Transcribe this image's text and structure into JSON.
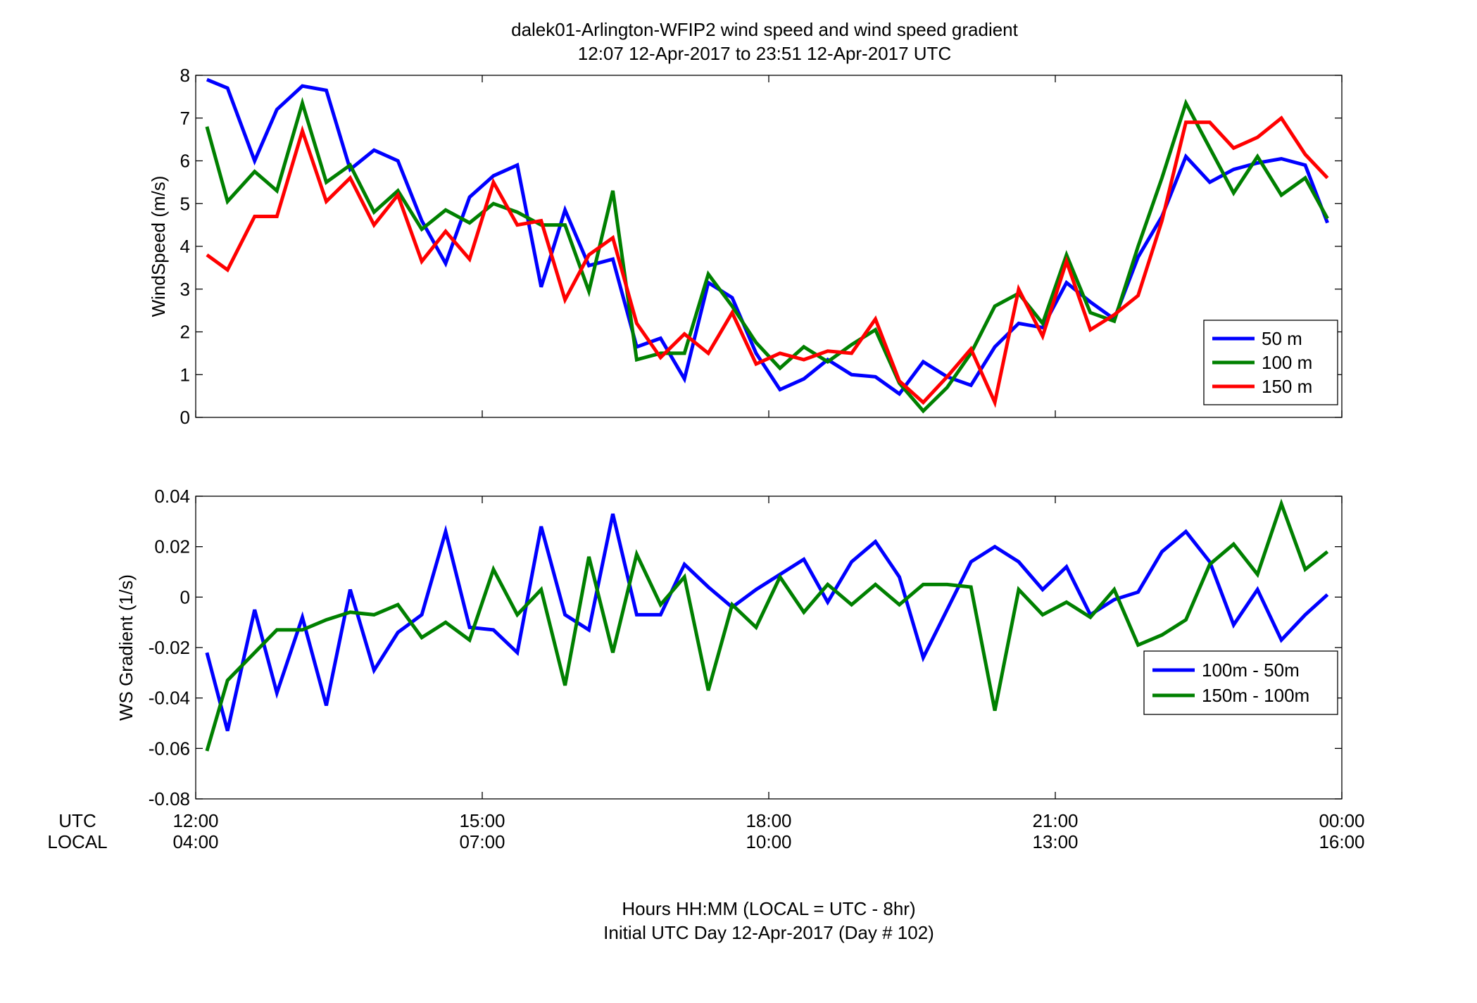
{
  "figure": {
    "title_line1": "dalek01-Arlington-WFIP2  wind speed and wind speed gradient",
    "title_line2": "12:07 12-Apr-2017 to 23:51 12-Apr-2017  UTC",
    "row_label_utc": "UTC",
    "row_label_local": "LOCAL",
    "xlabel_line1": "Hours HH:MM  (LOCAL = UTC - 8hr)",
    "xlabel_line2": "Initial UTC Day 12-Apr-2017 (Day # 102)",
    "utc_ticks": [
      "12:00",
      "15:00",
      "18:00",
      "21:00",
      "00:00"
    ],
    "local_ticks": [
      "04:00",
      "07:00",
      "10:00",
      "13:00",
      "16:00"
    ],
    "x_tick_hours": [
      0,
      3,
      6,
      9,
      12
    ],
    "xlim_hours": [
      0,
      12
    ],
    "x_note": "x values are hours elapsed since 12:00 UTC 12-Apr-2017"
  },
  "chart_data": [
    {
      "type": "line",
      "ylabel": "WindSpeed (m/s)",
      "ylim": [
        0,
        8
      ],
      "yticks": [
        0,
        1,
        2,
        3,
        4,
        5,
        6,
        7,
        8
      ],
      "grid": false,
      "legend_position": "bottom-right",
      "x": [
        0.117,
        0.333,
        0.617,
        0.85,
        1.117,
        1.367,
        1.617,
        1.867,
        2.117,
        2.367,
        2.617,
        2.867,
        3.117,
        3.367,
        3.617,
        3.867,
        4.117,
        4.367,
        4.617,
        4.867,
        5.117,
        5.367,
        5.617,
        5.867,
        6.117,
        6.367,
        6.617,
        6.867,
        7.117,
        7.367,
        7.617,
        7.867,
        8.117,
        8.367,
        8.617,
        8.867,
        9.117,
        9.367,
        9.617,
        9.867,
        10.117,
        10.367,
        10.617,
        10.867,
        11.117,
        11.367,
        11.617,
        11.85
      ],
      "series": [
        {
          "name": "50 m",
          "color": "#0000ff",
          "values": [
            7.9,
            7.7,
            6.0,
            7.2,
            7.75,
            7.65,
            5.8,
            6.25,
            6.0,
            4.6,
            3.6,
            5.15,
            5.65,
            5.9,
            3.05,
            4.85,
            3.55,
            3.7,
            1.65,
            1.85,
            0.9,
            3.15,
            2.8,
            1.5,
            0.65,
            0.9,
            1.35,
            1.0,
            0.95,
            0.55,
            1.3,
            0.95,
            0.75,
            1.65,
            2.2,
            2.1,
            3.15,
            2.7,
            2.3,
            3.75,
            4.7,
            6.1,
            5.5,
            5.8,
            5.95,
            6.05,
            5.9,
            4.55
          ]
        },
        {
          "name": "100 m",
          "color": "#008000",
          "values": [
            6.8,
            5.05,
            5.75,
            5.3,
            7.35,
            5.5,
            5.9,
            4.8,
            5.3,
            4.4,
            4.85,
            4.55,
            5.0,
            4.8,
            4.5,
            4.5,
            2.95,
            5.3,
            1.35,
            1.5,
            1.5,
            3.35,
            2.6,
            1.75,
            1.15,
            1.65,
            1.3,
            1.7,
            2.05,
            0.8,
            0.15,
            0.7,
            1.5,
            2.6,
            2.9,
            2.2,
            3.8,
            2.45,
            2.25,
            4.0,
            5.6,
            7.35,
            6.3,
            5.25,
            6.1,
            5.2,
            5.6,
            4.65
          ]
        },
        {
          "name": "150 m",
          "color": "#ff0000",
          "values": [
            3.8,
            3.45,
            4.7,
            4.7,
            6.7,
            5.05,
            5.6,
            4.5,
            5.2,
            3.65,
            4.35,
            3.7,
            5.5,
            4.5,
            4.6,
            2.75,
            3.8,
            4.2,
            2.2,
            1.4,
            1.95,
            1.5,
            2.45,
            1.25,
            1.5,
            1.35,
            1.55,
            1.5,
            2.3,
            0.85,
            0.35,
            0.95,
            1.6,
            0.35,
            3.0,
            1.9,
            3.65,
            2.05,
            2.4,
            2.85,
            4.6,
            6.9,
            6.9,
            6.3,
            6.55,
            7.0,
            6.15,
            5.6
          ]
        }
      ]
    },
    {
      "type": "line",
      "ylabel": "WS Gradient (1/s)",
      "ylim": [
        -0.08,
        0.04
      ],
      "yticks": [
        -0.08,
        -0.06,
        -0.04,
        -0.02,
        0,
        0.02,
        0.04
      ],
      "ytick_labels": [
        "-0.08",
        "-0.06",
        "-0.04",
        "-0.02",
        "0",
        "0.02",
        "0.04"
      ],
      "grid": false,
      "legend_position": "right",
      "x": [
        0.117,
        0.333,
        0.617,
        0.85,
        1.117,
        1.367,
        1.617,
        1.867,
        2.117,
        2.367,
        2.617,
        2.867,
        3.117,
        3.367,
        3.617,
        3.867,
        4.117,
        4.367,
        4.617,
        4.867,
        5.117,
        5.367,
        5.617,
        5.867,
        6.117,
        6.367,
        6.617,
        6.867,
        7.117,
        7.367,
        7.617,
        7.867,
        8.117,
        8.367,
        8.617,
        8.867,
        9.117,
        9.367,
        9.617,
        9.867,
        10.117,
        10.367,
        10.617,
        10.867,
        11.117,
        11.367,
        11.617,
        11.85
      ],
      "series": [
        {
          "name": "100m - 50m",
          "color": "#0000ff",
          "values": [
            -0.022,
            -0.053,
            -0.005,
            -0.038,
            -0.008,
            -0.043,
            0.003,
            -0.029,
            -0.014,
            -0.007,
            0.026,
            -0.012,
            -0.013,
            -0.022,
            0.028,
            -0.007,
            -0.013,
            0.033,
            -0.007,
            -0.007,
            0.013,
            0.004,
            -0.004,
            0.003,
            0.009,
            0.015,
            -0.002,
            0.014,
            0.022,
            0.008,
            -0.024,
            -0.005,
            0.014,
            0.02,
            0.014,
            0.003,
            0.012,
            -0.007,
            -0.001,
            0.002,
            0.018,
            0.026,
            0.014,
            -0.011,
            0.003,
            -0.017,
            -0.007,
            0.001
          ]
        },
        {
          "name": "150m - 100m",
          "color": "#008000",
          "values": [
            -0.061,
            -0.033,
            -0.022,
            -0.013,
            -0.013,
            -0.009,
            -0.006,
            -0.007,
            -0.003,
            -0.016,
            -0.01,
            -0.017,
            0.011,
            -0.007,
            0.003,
            -0.035,
            0.016,
            -0.022,
            0.017,
            -0.003,
            0.008,
            -0.037,
            -0.003,
            -0.012,
            0.008,
            -0.006,
            0.005,
            -0.003,
            0.005,
            -0.003,
            0.005,
            0.005,
            0.004,
            -0.045,
            0.003,
            -0.007,
            -0.002,
            -0.008,
            0.003,
            -0.019,
            -0.015,
            -0.009,
            0.013,
            0.021,
            0.009,
            0.037,
            0.011,
            0.018
          ]
        }
      ]
    }
  ]
}
